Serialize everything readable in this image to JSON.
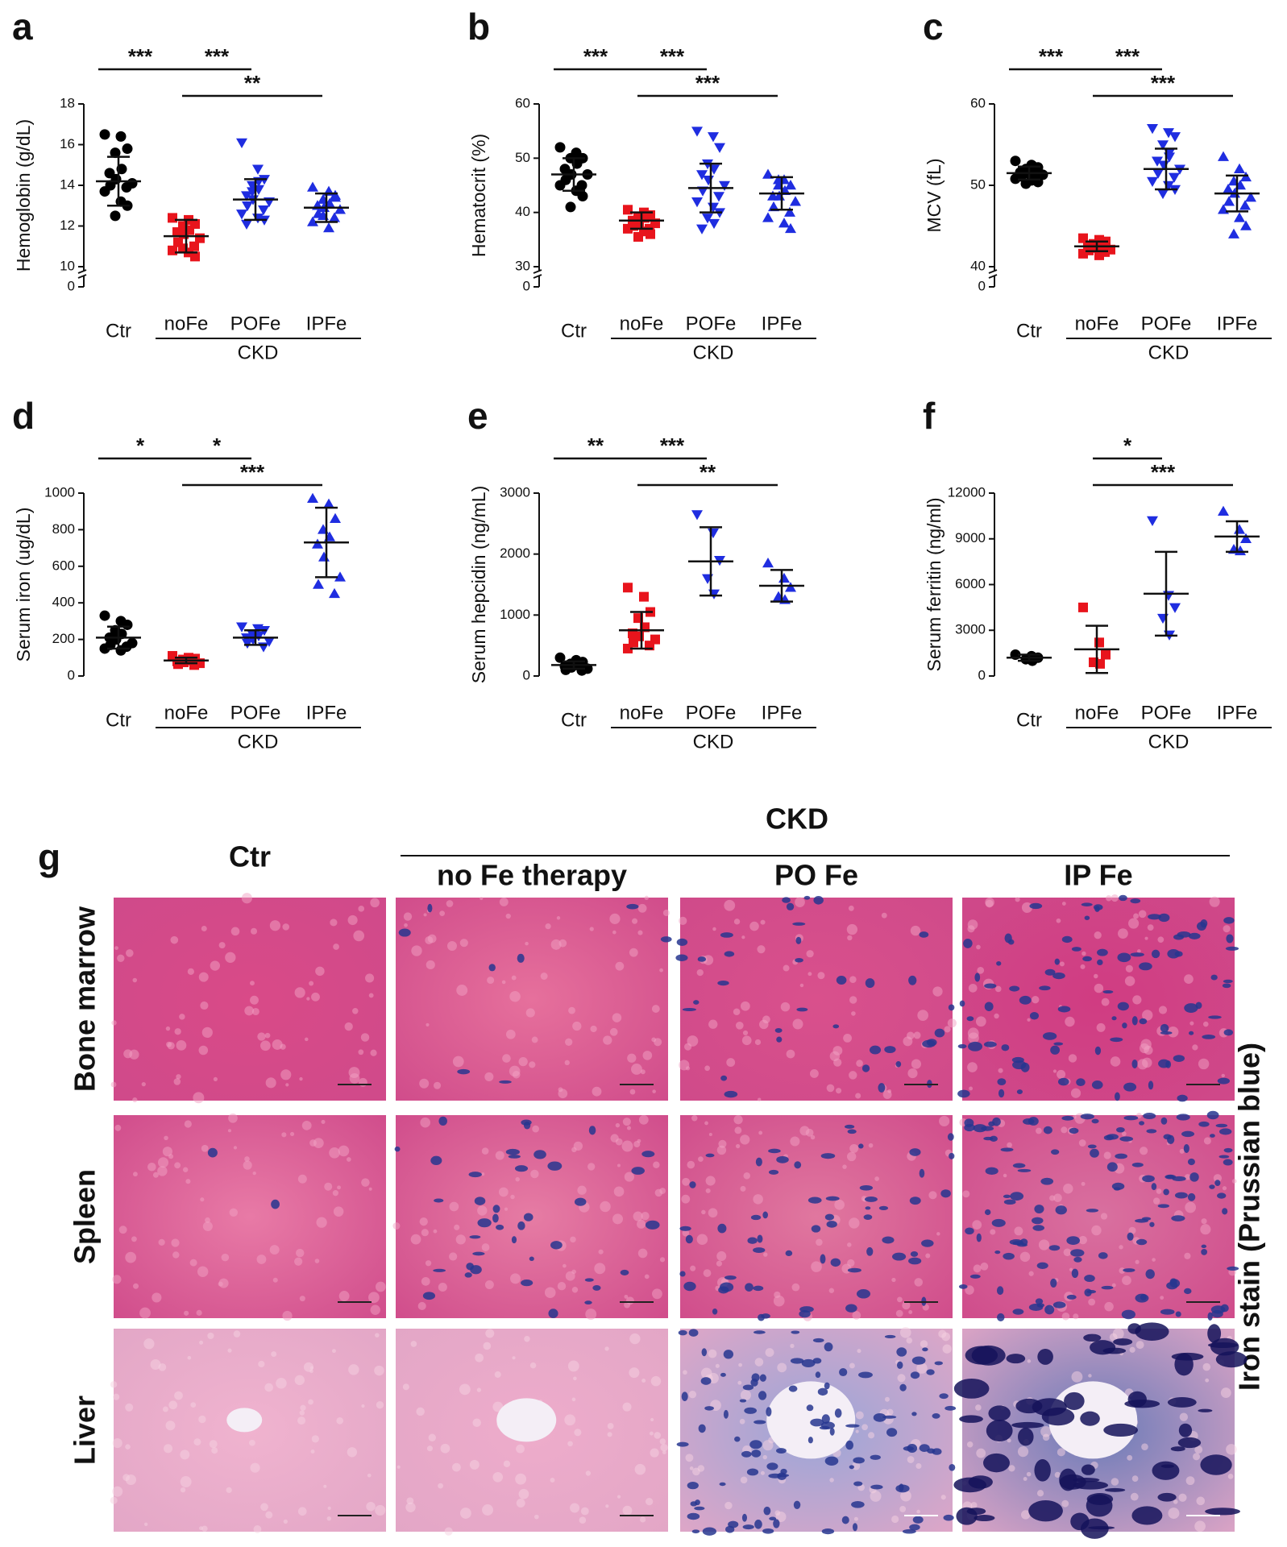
{
  "chart_data": [
    {
      "type": "dotplot",
      "letter": "a",
      "ylabel": "Hemoglobin (g/dL)",
      "categories": [
        "Ctr",
        "noFe",
        "POFe",
        "IPFe"
      ],
      "group_label": "CKD",
      "ylim": [
        0,
        18
      ],
      "yticks": [
        0,
        10,
        12,
        14,
        16,
        18
      ],
      "axis_break": 10,
      "groups": [
        {
          "color": "#000000",
          "marker": "circle",
          "mean": 14.2,
          "sd": 1.2,
          "points": [
            16.5,
            16.4,
            15.8,
            15.6,
            14.8,
            14.6,
            14.3,
            14.1,
            14.0,
            13.9,
            13.7,
            13.2,
            13.0,
            12.5
          ]
        },
        {
          "color": "#e8141c",
          "marker": "square",
          "mean": 11.5,
          "sd": 0.8,
          "points": [
            12.4,
            12.3,
            12.1,
            12.0,
            11.8,
            11.7,
            11.6,
            11.4,
            11.2,
            11.0,
            10.8,
            10.7,
            10.5,
            10.9
          ]
        },
        {
          "color": "#1f2de0",
          "marker": "triangle-down",
          "mean": 13.3,
          "sd": 1.0,
          "points": [
            16.1,
            14.8,
            14.3,
            14.0,
            13.8,
            13.5,
            13.3,
            13.2,
            13.0,
            12.8,
            12.6,
            12.4,
            12.3,
            13.7,
            14.2,
            12.1
          ]
        },
        {
          "color": "#1f2de0",
          "marker": "triangle-up",
          "mean": 12.9,
          "sd": 0.7,
          "points": [
            13.9,
            13.7,
            13.5,
            13.3,
            13.1,
            13.0,
            12.9,
            12.8,
            12.6,
            12.4,
            12.2,
            11.9,
            13.4,
            12.5
          ]
        }
      ],
      "significance": [
        {
          "from": 0,
          "to": 1,
          "label": "***"
        },
        {
          "from": 1,
          "to": 2,
          "label": "***"
        },
        {
          "from": 1,
          "to": 3,
          "label": "**"
        }
      ]
    },
    {
      "type": "dotplot",
      "letter": "b",
      "ylabel": "Hematocrit (%)",
      "categories": [
        "Ctr",
        "noFe",
        "POFe",
        "IPFe"
      ],
      "group_label": "CKD",
      "ylim": [
        0,
        60
      ],
      "yticks": [
        0,
        30,
        40,
        50,
        60
      ],
      "axis_break": 30,
      "groups": [
        {
          "color": "#000000",
          "marker": "circle",
          "mean": 47,
          "sd": 3,
          "points": [
            52,
            51,
            50,
            50,
            49,
            48,
            47,
            47,
            46,
            45,
            45,
            44,
            43,
            41
          ]
        },
        {
          "color": "#e8141c",
          "marker": "square",
          "mean": 38.5,
          "sd": 1.5,
          "points": [
            40.5,
            40,
            39.5,
            39,
            39,
            38.5,
            38,
            38,
            37.5,
            37,
            37,
            36.5,
            36,
            35.5
          ]
        },
        {
          "color": "#1f2de0",
          "marker": "triangle-down",
          "mean": 44.5,
          "sd": 4.5,
          "points": [
            55,
            54,
            52,
            49,
            48,
            47,
            46,
            45,
            44,
            43,
            42,
            41,
            40,
            39,
            38,
            37
          ]
        },
        {
          "color": "#1f2de0",
          "marker": "triangle-up",
          "mean": 43.5,
          "sd": 3,
          "points": [
            47,
            46,
            45,
            45,
            44,
            43,
            43,
            42,
            41,
            40,
            39,
            38,
            37,
            46
          ]
        }
      ],
      "significance": [
        {
          "from": 0,
          "to": 1,
          "label": "***"
        },
        {
          "from": 1,
          "to": 2,
          "label": "***"
        },
        {
          "from": 1,
          "to": 3,
          "label": "***"
        }
      ]
    },
    {
      "type": "dotplot",
      "letter": "c",
      "ylabel": "MCV (fL)",
      "categories": [
        "Ctr",
        "noFe",
        "POFe",
        "IPFe"
      ],
      "group_label": "CKD",
      "ylim": [
        0,
        60
      ],
      "yticks": [
        0,
        40,
        50,
        60
      ],
      "axis_break": 40,
      "groups": [
        {
          "color": "#000000",
          "marker": "circle",
          "mean": 51.5,
          "sd": 0.8,
          "points": [
            53,
            52.5,
            52.2,
            52,
            51.8,
            51.6,
            51.5,
            51.3,
            51.1,
            51,
            50.8,
            50.6,
            50.4,
            50.2,
            52.4
          ]
        },
        {
          "color": "#e8141c",
          "marker": "square",
          "mean": 42.5,
          "sd": 0.6,
          "points": [
            43.5,
            43.3,
            43,
            42.8,
            42.6,
            42.5,
            42.3,
            42.1,
            42,
            41.8,
            41.6,
            41.4,
            43.1,
            42.7
          ]
        },
        {
          "color": "#1f2de0",
          "marker": "triangle-down",
          "mean": 52,
          "sd": 2.5,
          "points": [
            57,
            56.5,
            56,
            55,
            54,
            53,
            52.5,
            52,
            51.5,
            51,
            50.5,
            50,
            49.5,
            49,
            53.5
          ]
        },
        {
          "color": "#1f2de0",
          "marker": "triangle-up",
          "mean": 49,
          "sd": 2.2,
          "points": [
            53.5,
            52,
            51,
            50.5,
            50,
            49.5,
            49,
            48.5,
            48,
            47.5,
            47,
            46,
            45,
            44
          ]
        }
      ],
      "significance": [
        {
          "from": 0,
          "to": 1,
          "label": "***"
        },
        {
          "from": 1,
          "to": 2,
          "label": "***"
        },
        {
          "from": 1,
          "to": 3,
          "label": "***"
        }
      ]
    },
    {
      "type": "dotplot",
      "letter": "d",
      "ylabel": "Serum iron (ug/dL)",
      "categories": [
        "Ctr",
        "noFe",
        "POFe",
        "IPFe"
      ],
      "group_label": "CKD",
      "ylim": [
        0,
        1000
      ],
      "yticks": [
        0,
        200,
        400,
        600,
        800,
        1000
      ],
      "groups": [
        {
          "color": "#000000",
          "marker": "circle",
          "mean": 210,
          "sd": 60,
          "points": [
            330,
            300,
            280,
            250,
            230,
            210,
            200,
            180,
            170,
            160,
            150,
            140
          ]
        },
        {
          "color": "#e8141c",
          "marker": "square",
          "mean": 85,
          "sd": 15,
          "points": [
            110,
            100,
            95,
            90,
            85,
            80,
            75,
            70,
            65,
            60
          ]
        },
        {
          "color": "#1f2de0",
          "marker": "triangle-down",
          "mean": 210,
          "sd": 40,
          "points": [
            270,
            260,
            250,
            230,
            220,
            210,
            200,
            190,
            180,
            160
          ]
        },
        {
          "color": "#1f2de0",
          "marker": "triangle-up",
          "mean": 730,
          "sd": 190,
          "points": [
            970,
            940,
            860,
            800,
            760,
            720,
            650,
            540,
            500,
            450
          ]
        }
      ],
      "significance": [
        {
          "from": 0,
          "to": 1,
          "label": "*"
        },
        {
          "from": 1,
          "to": 2,
          "label": "*"
        },
        {
          "from": 1,
          "to": 3,
          "label": "***"
        }
      ]
    },
    {
      "type": "dotplot",
      "letter": "e",
      "ylabel": "Serum  hepcidin  (ng/mL)",
      "categories": [
        "Ctr",
        "noFe",
        "POFe",
        "IPFe"
      ],
      "group_label": "CKD",
      "ylim": [
        0,
        3000
      ],
      "yticks": [
        0,
        1000,
        2000,
        3000
      ],
      "groups": [
        {
          "color": "#000000",
          "marker": "circle",
          "mean": 180,
          "sd": 60,
          "points": [
            300,
            260,
            230,
            200,
            180,
            160,
            140,
            120,
            100,
            90
          ]
        },
        {
          "color": "#e8141c",
          "marker": "square",
          "mean": 750,
          "sd": 300,
          "points": [
            1450,
            1300,
            1050,
            950,
            800,
            700,
            650,
            600,
            550,
            500,
            450
          ]
        },
        {
          "color": "#1f2de0",
          "marker": "triangle-down",
          "mean": 1880,
          "sd": 560,
          "points": [
            2650,
            2350,
            1900,
            1600,
            1350
          ]
        },
        {
          "color": "#1f2de0",
          "marker": "triangle-up",
          "mean": 1480,
          "sd": 260,
          "points": [
            1850,
            1600,
            1450,
            1300,
            1250
          ]
        }
      ],
      "significance": [
        {
          "from": 0,
          "to": 1,
          "label": "**"
        },
        {
          "from": 1,
          "to": 2,
          "label": "***"
        },
        {
          "from": 1,
          "to": 3,
          "label": "**"
        }
      ]
    },
    {
      "type": "dotplot",
      "letter": "f",
      "ylabel": "Serum ferritin (ng/ml)",
      "categories": [
        "Ctr",
        "noFe",
        "POFe",
        "IPFe"
      ],
      "group_label": "CKD",
      "ylim": [
        0,
        12000
      ],
      "yticks": [
        0,
        3000,
        6000,
        9000,
        12000
      ],
      "groups": [
        {
          "color": "#000000",
          "marker": "circle",
          "mean": 1200,
          "sd": 200,
          "points": [
            1400,
            1300,
            1200,
            1100,
            1000
          ]
        },
        {
          "color": "#e8141c",
          "marker": "square",
          "mean": 1750,
          "sd": 1550,
          "points": [
            4500,
            2200,
            1400,
            900,
            800
          ]
        },
        {
          "color": "#1f2de0",
          "marker": "triangle-down",
          "mean": 5400,
          "sd": 2750,
          "points": [
            10200,
            5300,
            4500,
            3800,
            2700
          ]
        },
        {
          "color": "#1f2de0",
          "marker": "triangle-up",
          "mean": 9150,
          "sd": 1000,
          "points": [
            10800,
            9600,
            9000,
            8300,
            8200
          ]
        }
      ],
      "significance": [
        {
          "from": 1,
          "to": 2,
          "label": "*"
        },
        {
          "from": 1,
          "to": 3,
          "label": "***"
        }
      ]
    }
  ],
  "histology": {
    "letter": "g",
    "group_label": "CKD",
    "columns": [
      "Ctr",
      "no Fe therapy",
      "PO Fe",
      "IP Fe"
    ],
    "rows": [
      "Bone marrow",
      "Spleen",
      "Liver"
    ],
    "side_label": "Iron stain (Prussian blue)"
  }
}
